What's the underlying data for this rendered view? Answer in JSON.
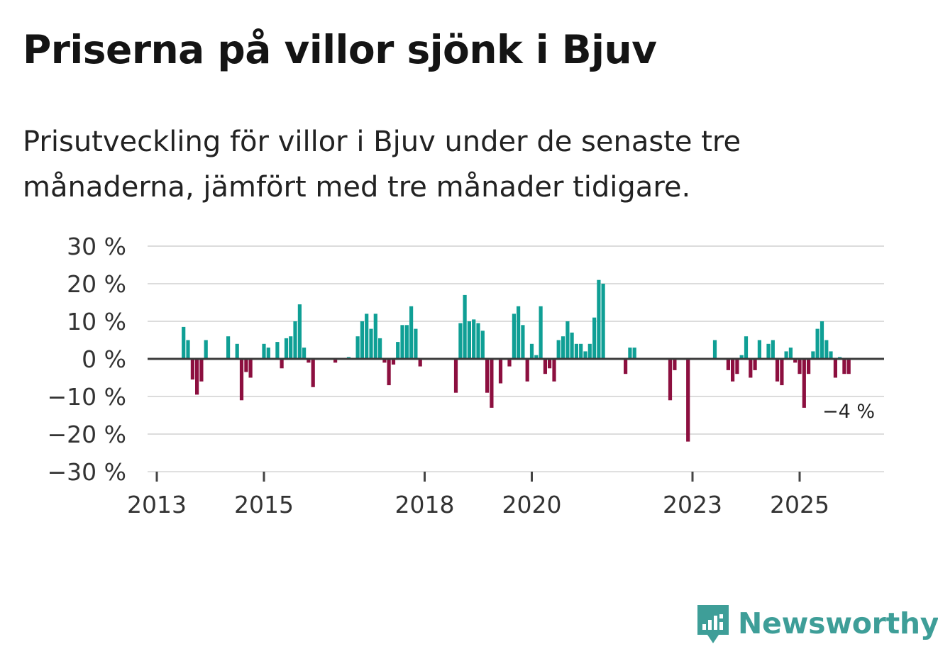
{
  "title": "Priserna på villor sjönk i Bjuv",
  "subtitle": "Prisutveckling för villor i Bjuv under de senaste tre månaderna, jämfört med tre månader tidigare.",
  "brand": {
    "name": "Newsworthy"
  },
  "colors": {
    "positive": "#0f9f95",
    "negative": "#8c0f3f",
    "grid": "#dcdcdc",
    "zero": "#3a3a3a",
    "brand": "#3e9e98"
  },
  "chart_data": {
    "type": "bar",
    "title": "Priserna på villor sjönk i Bjuv",
    "xlabel": "",
    "ylabel": "",
    "ylim": [
      -30,
      30
    ],
    "xlim": [
      2013,
      2026.5
    ],
    "y_ticks": [
      30,
      20,
      10,
      0,
      -10,
      -20,
      -30
    ],
    "y_tick_labels": [
      "30 %",
      "20 %",
      "10 %",
      "0 %",
      "−10 %",
      "−20 %",
      "−30 %"
    ],
    "x_ticks": [
      2013,
      2015,
      2018,
      2020,
      2023,
      2025
    ],
    "x_tick_labels": [
      "2013",
      "2015",
      "2018",
      "2020",
      "2023",
      "2025"
    ],
    "end_label": "−4 %",
    "series": [
      {
        "name": "Prisutveckling",
        "x": [
          2013.5,
          2013.583,
          2013.667,
          2013.75,
          2013.833,
          2013.917,
          2014.333,
          2014.5,
          2014.583,
          2014.667,
          2014.75,
          2015.0,
          2015.083,
          2015.25,
          2015.333,
          2015.417,
          2015.5,
          2015.583,
          2015.667,
          2015.75,
          2015.833,
          2015.917,
          2016.0,
          2016.333,
          2016.583,
          2016.75,
          2016.833,
          2016.917,
          2017.0,
          2017.083,
          2017.167,
          2017.25,
          2017.333,
          2017.417,
          2017.5,
          2017.583,
          2017.667,
          2017.75,
          2017.833,
          2017.917,
          2018.583,
          2018.667,
          2018.75,
          2018.833,
          2018.917,
          2019.0,
          2019.083,
          2019.167,
          2019.25,
          2019.417,
          2019.583,
          2019.667,
          2019.75,
          2019.833,
          2019.917,
          2020.0,
          2020.083,
          2020.167,
          2020.25,
          2020.333,
          2020.417,
          2020.5,
          2020.583,
          2020.667,
          2020.75,
          2020.833,
          2020.917,
          2021.0,
          2021.083,
          2021.167,
          2021.25,
          2021.333,
          2021.75,
          2021.833,
          2021.917,
          2022.583,
          2022.667,
          2022.917,
          2023.417,
          2023.667,
          2023.75,
          2023.833,
          2023.917,
          2024.0,
          2024.083,
          2024.167,
          2024.25,
          2024.417,
          2024.5,
          2024.583,
          2024.667,
          2024.75,
          2024.833,
          2024.917,
          2025.0,
          2025.083,
          2025.167,
          2025.25,
          2025.333,
          2025.417,
          2025.5,
          2025.583,
          2025.667,
          2025.75,
          2025.833,
          2025.917
        ],
        "values": [
          8.5,
          5,
          -5.5,
          -9.5,
          -6,
          5,
          6,
          4,
          -11,
          -3.5,
          -5,
          4,
          3,
          4.5,
          -2.5,
          5.5,
          6,
          10,
          14.5,
          3,
          -1,
          -7.5,
          0,
          -1,
          0.5,
          6,
          10,
          12,
          8,
          12,
          5.5,
          -1,
          -7,
          -1.5,
          4.5,
          9,
          9,
          14,
          8,
          -2,
          -9,
          9.5,
          17,
          10,
          10.5,
          9.5,
          7.5,
          -9,
          -13,
          -6.5,
          -2,
          12,
          14,
          9,
          -6,
          4,
          1,
          14,
          -4,
          -2.5,
          -6,
          5,
          6,
          10,
          7,
          4,
          4,
          2,
          4,
          11,
          21,
          20,
          -4,
          3,
          3,
          -11,
          -3,
          -22,
          5,
          -3,
          -6,
          -4,
          1,
          6,
          -5,
          -3,
          5,
          4,
          5,
          -6,
          -7,
          2,
          3,
          -1,
          -4,
          -13,
          -4,
          2,
          8,
          10,
          5,
          2,
          -5,
          0.5,
          -4,
          -4
        ]
      }
    ]
  }
}
